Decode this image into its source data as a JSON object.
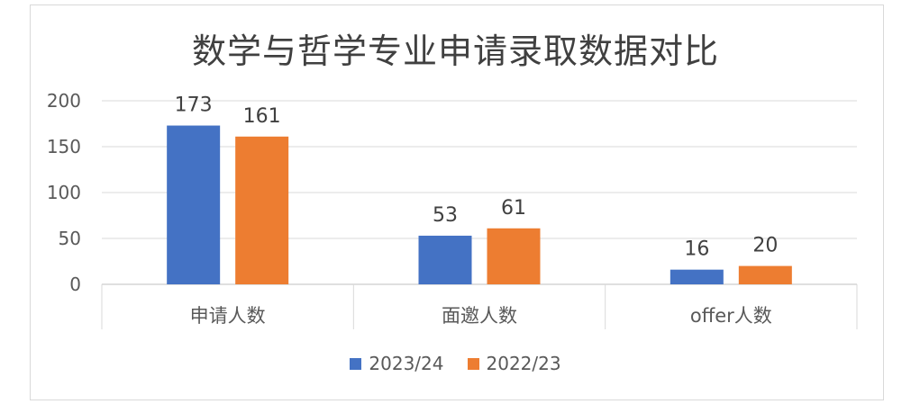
{
  "chart_data": {
    "type": "bar",
    "title": "数学与哲学专业申请录取数据对比",
    "categories": [
      "申请人数",
      "面邀人数",
      "offer人数"
    ],
    "series": [
      {
        "name": "2023/24",
        "values": [
          173,
          53,
          16
        ],
        "color": "#4472C4"
      },
      {
        "name": "2022/23",
        "values": [
          161,
          61,
          20
        ],
        "color": "#ED7D31"
      }
    ],
    "ylim": [
      0,
      200
    ],
    "yticks": [
      0,
      50,
      100,
      150,
      200
    ],
    "grid": true,
    "data_labels": true,
    "legend_position": "bottom"
  }
}
